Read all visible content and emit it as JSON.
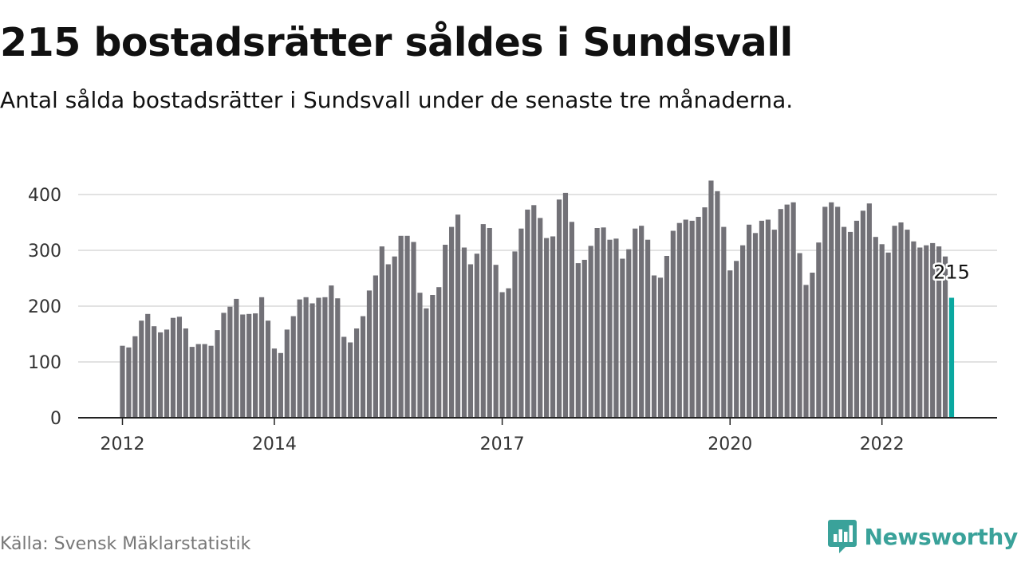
{
  "title": "215 bostadsrätter såldes i Sundsvall",
  "subtitle": "Antal sålda bostadsrätter i Sundsvall under de senaste tre månaderna.",
  "source": "Källa: Svensk Mäklarstatistik",
  "brand": {
    "name": "Newsworthy",
    "icon": "newsworthy-logo-icon"
  },
  "colors": {
    "bar": "#727177",
    "highlight": "#0aa8a0",
    "grid": "#d9d9d9",
    "axis": "#222222",
    "brand": "#3aa29a"
  },
  "chart_data": {
    "type": "bar",
    "x_start": "2012-01",
    "x_interval": "month",
    "values": [
      129,
      126,
      146,
      174,
      186,
      164,
      153,
      158,
      179,
      181,
      160,
      127,
      132,
      132,
      129,
      157,
      188,
      199,
      213,
      185,
      186,
      187,
      216,
      174,
      124,
      116,
      158,
      182,
      212,
      216,
      205,
      215,
      216,
      237,
      214,
      145,
      135,
      160,
      182,
      228,
      255,
      307,
      275,
      289,
      326,
      326,
      315,
      224,
      196,
      220,
      234,
      310,
      342,
      364,
      305,
      275,
      294,
      347,
      340,
      274,
      225,
      232,
      298,
      339,
      373,
      381,
      358,
      322,
      325,
      391,
      403,
      351,
      277,
      283,
      308,
      340,
      341,
      319,
      321,
      285,
      302,
      339,
      344,
      319,
      255,
      251,
      290,
      335,
      349,
      355,
      353,
      360,
      377,
      425,
      406,
      342,
      264,
      281,
      309,
      346,
      331,
      353,
      355,
      337,
      374,
      382,
      386,
      295,
      238,
      260,
      314,
      378,
      386,
      378,
      342,
      333,
      353,
      371,
      384,
      324,
      311,
      296,
      344,
      350,
      337,
      316,
      305,
      309,
      313,
      307,
      289,
      215
    ],
    "highlight_index": 131,
    "highlight_label": "215",
    "x_ticks": [
      {
        "label": "2012",
        "index": 0
      },
      {
        "label": "2014",
        "index": 24
      },
      {
        "label": "2017",
        "index": 60
      },
      {
        "label": "2020",
        "index": 96
      },
      {
        "label": "2022",
        "index": 120
      }
    ],
    "y_ticks": [
      0,
      100,
      200,
      300,
      400
    ],
    "ylim": [
      0,
      440
    ],
    "grid": true,
    "legend": "none"
  }
}
